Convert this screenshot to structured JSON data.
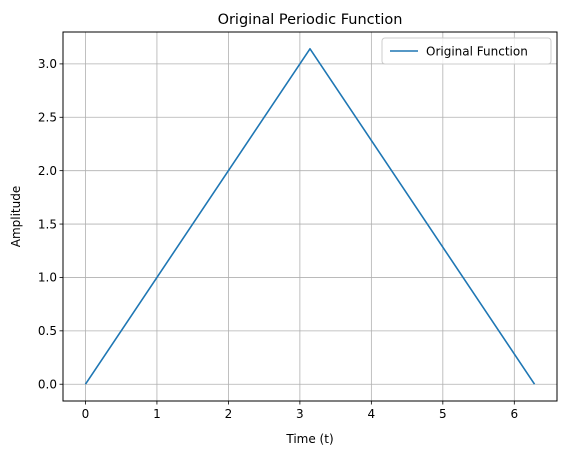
{
  "chart_data": {
    "type": "line",
    "title": "Original Periodic Function",
    "xlabel": "Time (t)",
    "ylabel": "Amplitude",
    "xlim": [
      -0.3141592653589793,
      6.5973445725385655
    ],
    "ylim": [
      -0.15707963267948966,
      3.2986722862692828
    ],
    "xticks": [
      0,
      1,
      2,
      3,
      4,
      5,
      6
    ],
    "yticks": [
      0.0,
      0.5,
      1.0,
      1.5,
      2.0,
      2.5,
      3.0
    ],
    "xtick_labels": [
      "0",
      "1",
      "2",
      "3",
      "4",
      "5",
      "6"
    ],
    "ytick_labels": [
      "0.0",
      "0.5",
      "1.0",
      "1.5",
      "2.0",
      "2.5",
      "3.0"
    ],
    "grid": true,
    "legend_position": "top-right",
    "series": [
      {
        "name": "Original Function",
        "color": "#1f77b4",
        "x": [
          0,
          3.141592653589793,
          6.283185307179586
        ],
        "y": [
          0,
          3.141592653589793,
          0
        ]
      }
    ]
  }
}
